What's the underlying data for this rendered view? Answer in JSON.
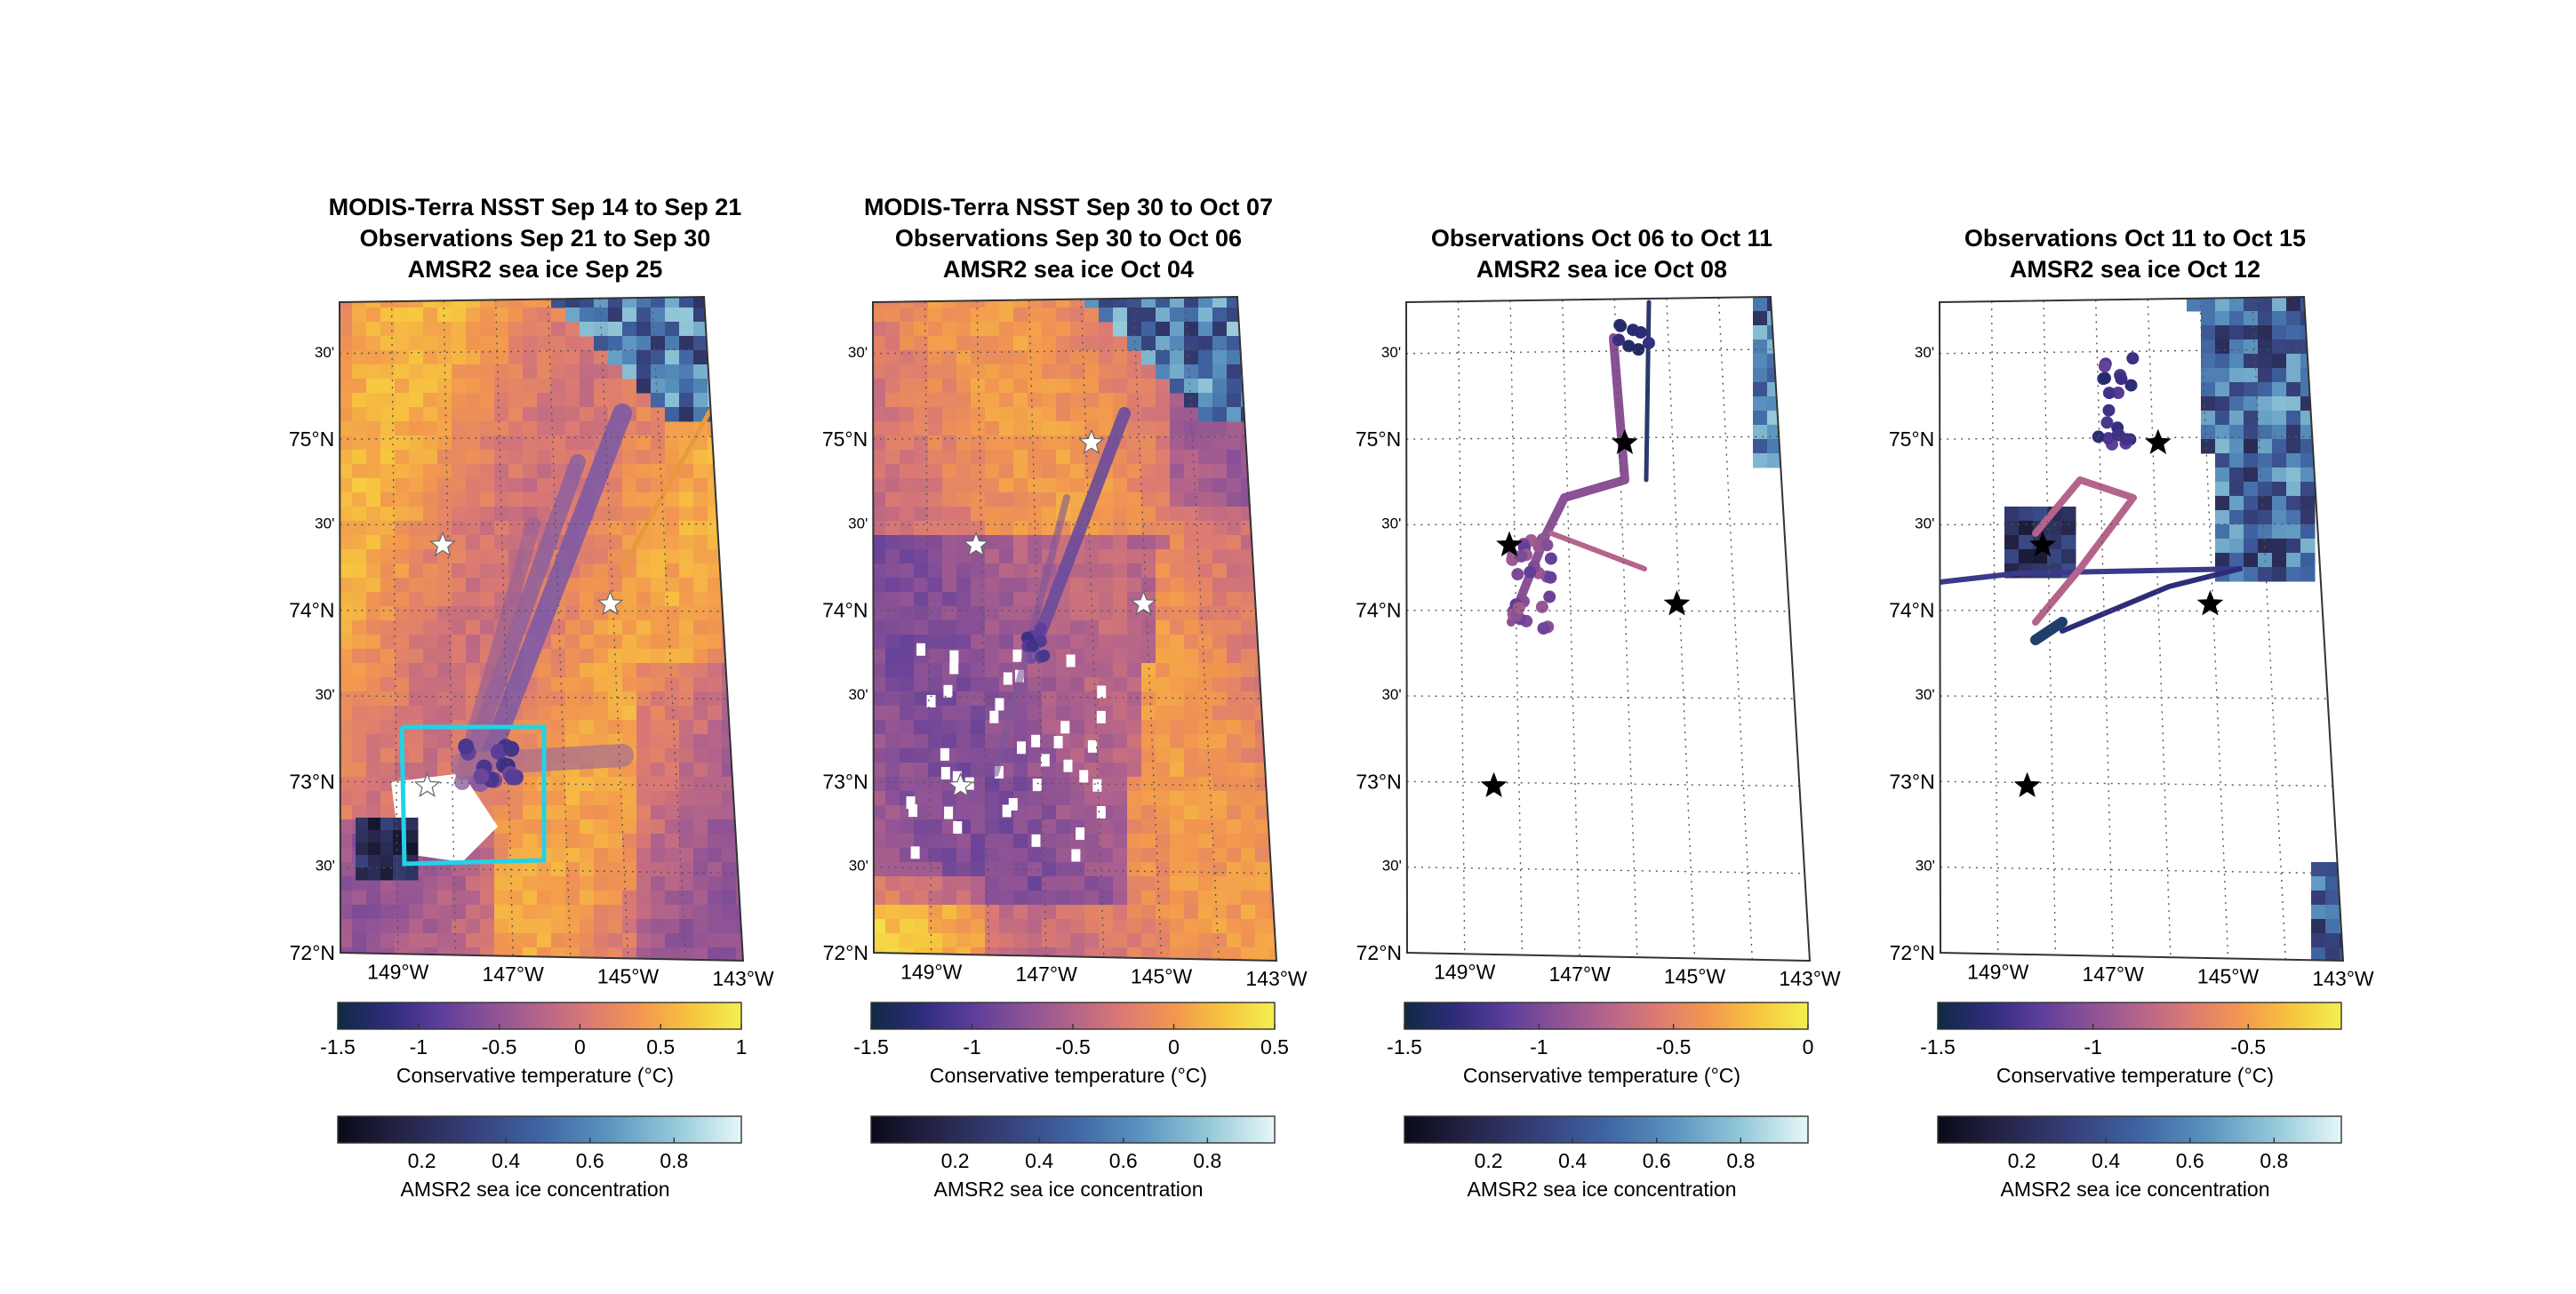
{
  "panels": [
    {
      "title_lines": [
        "MODIS-Terra NSST Sep 14 to Sep 21",
        "Observations Sep 21 to Sep 30",
        "AMSR2 sea ice Sep 25"
      ],
      "has_sst": true,
      "sst_pattern": "warm",
      "temp_colorbar": {
        "ticks": [
          "-1.5",
          "-1",
          "-0.5",
          "0",
          "0.5",
          "1"
        ],
        "min": -1.5,
        "max": 1.0,
        "label": "Conservative temperature  (°C)"
      },
      "ice_colorbar": {
        "ticks": [
          "0.2",
          "0.4",
          "0.6",
          "0.8"
        ],
        "label": "AMSR2 sea ice concentration"
      },
      "stars": [
        {
          "lon": -148.1,
          "lat": 74.38,
          "color": "white"
        },
        {
          "lon": -145.05,
          "lat": 74.04,
          "color": "white"
        },
        {
          "lon": -148.45,
          "lat": 72.98,
          "color": "white"
        }
      ],
      "has_box": true
    },
    {
      "title_lines": [
        "MODIS-Terra NSST Sep 30 to Oct 07",
        "Observations Sep 30 to Oct 06",
        "AMSR2 sea ice Oct 04"
      ],
      "has_sst": true,
      "sst_pattern": "cool",
      "temp_colorbar": {
        "ticks": [
          "-1.5",
          "-1",
          "-0.5",
          "0",
          "0.5"
        ],
        "min": -1.5,
        "max": 0.5,
        "label": "Conservative temperature  (°C)"
      },
      "ice_colorbar": {
        "ticks": [
          "0.2",
          "0.4",
          "0.6",
          "0.8"
        ],
        "label": "AMSR2 sea ice concentration"
      },
      "stars": [
        {
          "lon": -148.1,
          "lat": 74.38,
          "color": "white"
        },
        {
          "lon": -145.05,
          "lat": 74.04,
          "color": "white"
        },
        {
          "lon": -148.45,
          "lat": 72.98,
          "color": "white"
        },
        {
          "lon": -145.9,
          "lat": 74.97,
          "color": "white"
        }
      ],
      "has_box": false
    },
    {
      "title_lines": [
        "Observations Oct 06 to Oct 11",
        "AMSR2 sea ice Oct 08"
      ],
      "has_sst": false,
      "temp_colorbar": {
        "ticks": [
          "-1.5",
          "-1",
          "-0.5",
          "0"
        ],
        "min": -1.5,
        "max": 0.0,
        "label": "Conservative temperature  (°C)"
      },
      "ice_colorbar": {
        "ticks": [
          "0.2",
          "0.4",
          "0.6",
          "0.8"
        ],
        "label": "AMSR2 sea ice concentration"
      },
      "stars": [
        {
          "lon": -148.1,
          "lat": 74.38,
          "color": "black"
        },
        {
          "lon": -145.05,
          "lat": 74.04,
          "color": "black"
        },
        {
          "lon": -148.45,
          "lat": 72.98,
          "color": "black"
        },
        {
          "lon": -145.9,
          "lat": 74.97,
          "color": "black"
        }
      ],
      "has_box": false
    },
    {
      "title_lines": [
        "Observations Oct 11 to Oct 15",
        "AMSR2 sea ice Oct 12"
      ],
      "has_sst": false,
      "temp_colorbar": {
        "ticks": [
          "-1.5",
          "-1",
          "-0.5"
        ],
        "min": -1.5,
        "max": -0.2,
        "label": "Conservative temperature  (°C)"
      },
      "ice_colorbar": {
        "ticks": [
          "0.2",
          "0.4",
          "0.6",
          "0.8"
        ],
        "label": "AMSR2 sea ice concentration"
      },
      "stars": [
        {
          "lon": -148.1,
          "lat": 74.38,
          "color": "black"
        },
        {
          "lon": -145.05,
          "lat": 74.04,
          "color": "black"
        },
        {
          "lon": -148.45,
          "lat": 72.98,
          "color": "black"
        },
        {
          "lon": -145.9,
          "lat": 74.97,
          "color": "black"
        }
      ],
      "has_box": false
    }
  ],
  "lat_labels": [
    {
      "lat": 75.5,
      "text": "30'",
      "minor": true
    },
    {
      "lat": 75.0,
      "text": "75°N",
      "minor": false
    },
    {
      "lat": 74.5,
      "text": "30'",
      "minor": true
    },
    {
      "lat": 74.0,
      "text": "74°N",
      "minor": false
    },
    {
      "lat": 73.5,
      "text": "30'",
      "minor": true
    },
    {
      "lat": 73.0,
      "text": "73°N",
      "minor": false
    },
    {
      "lat": 72.5,
      "text": "30'",
      "minor": true
    },
    {
      "lat": 72.0,
      "text": "72°N",
      "minor": false
    }
  ],
  "lon_labels": [
    {
      "lon": -149,
      "text": "149°W"
    },
    {
      "lon": -147,
      "text": "147°W"
    },
    {
      "lon": -145,
      "text": "145°W"
    },
    {
      "lon": -143,
      "text": "143°W"
    }
  ],
  "colors": {
    "temperature_cmap": [
      "#0f2a43",
      "#2e2c7a",
      "#5b3d9a",
      "#8a5196",
      "#b4648a",
      "#db7a73",
      "#f2974f",
      "#f7c43f",
      "#f3f04f"
    ],
    "ice_cmap": [
      "#0a0a1a",
      "#262549",
      "#36407a",
      "#3f64a3",
      "#5a93bf",
      "#93c8d8",
      "#e6f8f8"
    ],
    "box": "#22d3e6"
  }
}
